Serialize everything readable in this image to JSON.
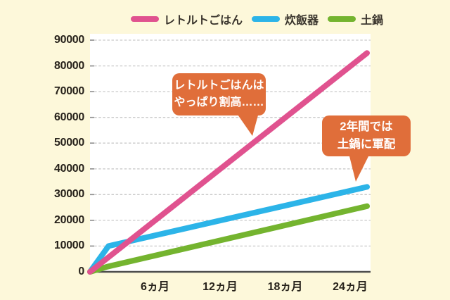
{
  "colors": {
    "background": "#fdf8da",
    "plot_background": "#ffffff",
    "grid": "#c9c9c9",
    "axis": "#4d4d4d",
    "tick_text": "#27221b",
    "legend_text": "#3b362e",
    "callout_bg": "#e06e3a",
    "callout_text": "#ffffff",
    "series_pink": "#e0528f",
    "series_cyan": "#2cb4e8",
    "series_green": "#74b42f"
  },
  "chart_data": {
    "type": "line",
    "title": "",
    "xlabel": "",
    "ylabel": "",
    "x_unit": "months (ヵ月)",
    "y_unit": "yen (cumulative cost)",
    "xlim": [
      0,
      24
    ],
    "ylim": [
      0,
      90000
    ],
    "yticks": [
      0,
      10000,
      20000,
      30000,
      40000,
      50000,
      60000,
      70000,
      80000,
      90000
    ],
    "x_tick_labels": [
      "6ヵ月",
      "12ヵ月",
      "18ヵ月",
      "24ヵ月"
    ],
    "grid": "horizontal-dashed",
    "legend_position": "top-center",
    "series": [
      {
        "name": "レトルトごはん",
        "key": "retort-gohan",
        "color": "#e0528f",
        "points": [
          [
            0,
            0
          ],
          [
            24,
            85000
          ]
        ]
      },
      {
        "name": "炊飯器",
        "key": "suihanki",
        "color": "#2cb4e8",
        "points": [
          [
            0,
            0
          ],
          [
            1.6,
            10000
          ],
          [
            24,
            33000
          ]
        ]
      },
      {
        "name": "土鍋",
        "key": "donabe",
        "color": "#74b42f",
        "points": [
          [
            0,
            0
          ],
          [
            1.5,
            2000
          ],
          [
            24,
            25500
          ]
        ]
      }
    ],
    "callouts": [
      {
        "key": "retort",
        "lines": [
          "レトルトごはんは",
          "やっぱり割高……"
        ]
      },
      {
        "key": "donabe",
        "lines": [
          "2年間では",
          "土鍋に軍配"
        ]
      }
    ]
  }
}
